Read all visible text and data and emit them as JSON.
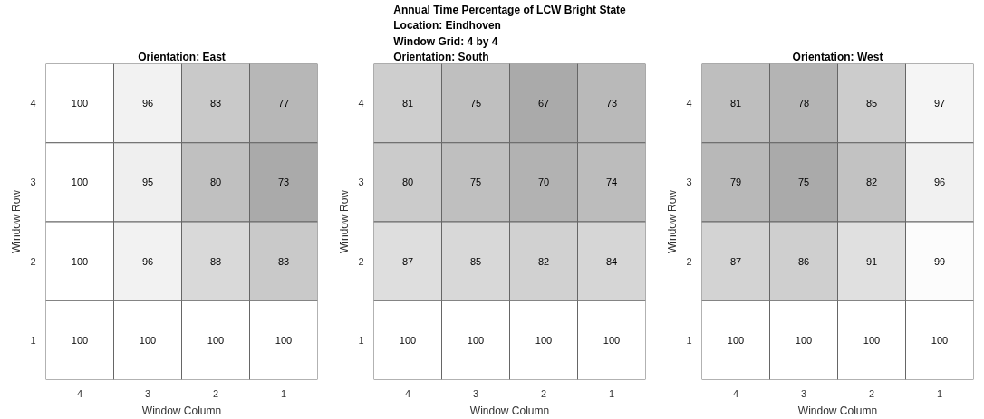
{
  "chart_data": [
    {
      "type": "heatmap",
      "title": "Orientation: East",
      "xlabel": "Window Column",
      "ylabel": "Window Row",
      "categories": [
        "4",
        "3",
        "2",
        "1"
      ],
      "y_categories": [
        "4",
        "3",
        "2",
        "1"
      ],
      "data_labels": true,
      "cells": [
        [
          100,
          96,
          83,
          77
        ],
        [
          100,
          95,
          80,
          73
        ],
        [
          100,
          96,
          88,
          83
        ],
        [
          100,
          100,
          100,
          100
        ]
      ]
    },
    {
      "type": "heatmap",
      "title": "Annual Time Percentage of LCW Bright State\nLocation: Eindhoven\nWindow Grid: 4 by 4\nOrientation: South",
      "xlabel": "Window Column",
      "ylabel": "Window Row",
      "categories": [
        "4",
        "3",
        "2",
        "1"
      ],
      "y_categories": [
        "4",
        "3",
        "2",
        "1"
      ],
      "data_labels": true,
      "cells": [
        [
          81,
          75,
          67,
          73
        ],
        [
          80,
          75,
          70,
          74
        ],
        [
          87,
          85,
          82,
          84
        ],
        [
          100,
          100,
          100,
          100
        ]
      ]
    },
    {
      "type": "heatmap",
      "title": "Orientation: West",
      "xlabel": "Window Column",
      "ylabel": "Window Row",
      "categories": [
        "4",
        "3",
        "2",
        "1"
      ],
      "y_categories": [
        "4",
        "3",
        "2",
        "1"
      ],
      "data_labels": true,
      "cells": [
        [
          81,
          78,
          85,
          97
        ],
        [
          79,
          75,
          82,
          96
        ],
        [
          87,
          86,
          91,
          99
        ],
        [
          100,
          100,
          100,
          100
        ]
      ]
    }
  ]
}
